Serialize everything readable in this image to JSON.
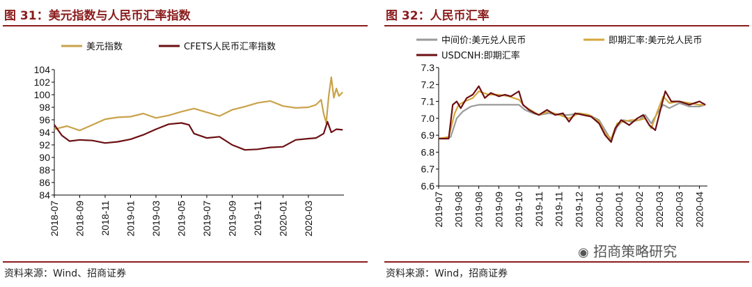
{
  "left": {
    "title": "图 31：美元指数与人民币汇率指数",
    "source": "资料来源：Wind、招商证券"
  },
  "right": {
    "title": "图 32：人民币汇率",
    "source": "资料来源：Wind，招商证券"
  },
  "watermark": "招商策略研究",
  "chart_data": [
    {
      "type": "line",
      "title": "图 31：美元指数与人民币汇率指数",
      "xlabel": "",
      "ylabel": "",
      "ylim": [
        84,
        104
      ],
      "yticks": [
        84,
        86,
        88,
        90,
        92,
        94,
        96,
        98,
        100,
        102,
        104
      ],
      "x_tick_labels": [
        "2018-07",
        "2018-09",
        "2018-11",
        "2019-01",
        "2019-03",
        "2019-05",
        "2019-07",
        "2019-09",
        "2019-11",
        "2020-01",
        "2020-03"
      ],
      "legend_position": "top",
      "grid": false,
      "series": [
        {
          "name": "美元指数",
          "color": "#c9a24a",
          "points": [
            [
              0,
              94.5
            ],
            [
              0.5,
              95.0
            ],
            [
              1,
              94.3
            ],
            [
              1.5,
              95.2
            ],
            [
              2,
              96.1
            ],
            [
              2.5,
              96.4
            ],
            [
              3,
              96.5
            ],
            [
              3.5,
              97.0
            ],
            [
              4,
              96.3
            ],
            [
              4.5,
              96.7
            ],
            [
              5,
              97.3
            ],
            [
              5.5,
              97.8
            ],
            [
              6,
              97.2
            ],
            [
              6.5,
              96.6
            ],
            [
              7,
              97.6
            ],
            [
              7.5,
              98.1
            ],
            [
              8,
              98.7
            ],
            [
              8.5,
              99.0
            ],
            [
              9,
              98.2
            ],
            [
              9.5,
              97.9
            ],
            [
              10,
              98.0
            ],
            [
              10.3,
              98.4
            ],
            [
              10.5,
              99.2
            ],
            [
              10.6,
              97.0
            ],
            [
              10.7,
              95.5
            ],
            [
              10.8,
              99.8
            ],
            [
              10.9,
              102.8
            ],
            [
              11.0,
              99.5
            ],
            [
              11.1,
              101.0
            ],
            [
              11.2,
              99.8
            ],
            [
              11.35,
              100.4
            ]
          ]
        },
        {
          "name": "CFETS人民币汇率指数",
          "color": "#6b0f12",
          "points": [
            [
              0,
              95.2
            ],
            [
              0.3,
              93.5
            ],
            [
              0.6,
              92.6
            ],
            [
              1,
              92.8
            ],
            [
              1.5,
              92.7
            ],
            [
              2,
              92.3
            ],
            [
              2.5,
              92.5
            ],
            [
              3,
              92.9
            ],
            [
              3.5,
              93.6
            ],
            [
              4,
              94.5
            ],
            [
              4.5,
              95.3
            ],
            [
              5,
              95.5
            ],
            [
              5.3,
              95.2
            ],
            [
              5.5,
              93.8
            ],
            [
              6,
              93.1
            ],
            [
              6.5,
              93.3
            ],
            [
              7,
              92.0
            ],
            [
              7.5,
              91.2
            ],
            [
              8,
              91.3
            ],
            [
              8.5,
              91.6
            ],
            [
              9,
              91.7
            ],
            [
              9.5,
              92.8
            ],
            [
              10,
              93.0
            ],
            [
              10.3,
              93.1
            ],
            [
              10.6,
              93.8
            ],
            [
              10.75,
              95.7
            ],
            [
              10.9,
              94.0
            ],
            [
              11.1,
              94.5
            ],
            [
              11.35,
              94.4
            ]
          ]
        }
      ]
    },
    {
      "type": "line",
      "title": "图 32：人民币汇率",
      "xlabel": "",
      "ylabel": "",
      "ylim": [
        6.6,
        7.3
      ],
      "yticks": [
        6.6,
        6.7,
        6.8,
        6.9,
        7.0,
        7.1,
        7.2,
        7.3
      ],
      "x_tick_labels": [
        "2019-07",
        "2019-08",
        "2019-08",
        "2019-09",
        "2019-10",
        "2019-11",
        "2019-11",
        "2019-12",
        "2020-01",
        "2020-01",
        "2020-02",
        "2020-03",
        "2020-03",
        "2020-04"
      ],
      "legend_position": "top",
      "grid": false,
      "series": [
        {
          "name": "中间价:美元兑人民币",
          "color": "#9a9a9a",
          "points": [
            [
              0,
              6.88
            ],
            [
              0.6,
              6.89
            ],
            [
              0.9,
              7.0
            ],
            [
              1.2,
              7.04
            ],
            [
              1.6,
              7.07
            ],
            [
              2,
              7.08
            ],
            [
              2.5,
              7.08
            ],
            [
              3,
              7.08
            ],
            [
              3.5,
              7.08
            ],
            [
              4,
              7.08
            ],
            [
              4.3,
              7.05
            ],
            [
              4.7,
              7.03
            ],
            [
              5,
              7.02
            ],
            [
              5.5,
              7.03
            ],
            [
              6,
              7.02
            ],
            [
              6.5,
              7.02
            ],
            [
              7,
              7.03
            ],
            [
              7.5,
              7.02
            ],
            [
              8,
              6.99
            ],
            [
              8.3,
              6.93
            ],
            [
              8.6,
              6.87
            ],
            [
              8.9,
              6.95
            ],
            [
              9.2,
              6.99
            ],
            [
              9.6,
              6.98
            ],
            [
              10,
              6.99
            ],
            [
              10.3,
              7.02
            ],
            [
              10.6,
              6.97
            ],
            [
              10.9,
              7.03
            ],
            [
              11.2,
              7.08
            ],
            [
              11.5,
              7.06
            ],
            [
              12,
              7.09
            ],
            [
              12.5,
              7.07
            ],
            [
              13,
              7.07
            ],
            [
              13.3,
              7.08
            ]
          ]
        },
        {
          "name": "即期汇率:美元兑人民币",
          "color": "#d4a63b",
          "points": [
            [
              0,
              6.88
            ],
            [
              0.5,
              6.89
            ],
            [
              0.8,
              7.03
            ],
            [
              1,
              7.08
            ],
            [
              1.3,
              7.1
            ],
            [
              1.7,
              7.12
            ],
            [
              2,
              7.16
            ],
            [
              2.5,
              7.14
            ],
            [
              3,
              7.14
            ],
            [
              3.5,
              7.13
            ],
            [
              4,
              7.11
            ],
            [
              4.3,
              7.07
            ],
            [
              4.7,
              7.04
            ],
            [
              5,
              7.02
            ],
            [
              5.5,
              7.04
            ],
            [
              6,
              7.02
            ],
            [
              6.5,
              7.0
            ],
            [
              7,
              7.03
            ],
            [
              7.5,
              7.02
            ],
            [
              8,
              6.98
            ],
            [
              8.3,
              6.91
            ],
            [
              8.6,
              6.88
            ],
            [
              8.9,
              6.97
            ],
            [
              9.2,
              6.98
            ],
            [
              9.6,
              6.99
            ],
            [
              10,
              6.99
            ],
            [
              10.3,
              7.0
            ],
            [
              10.6,
              6.94
            ],
            [
              10.9,
              7.04
            ],
            [
              11.2,
              7.13
            ],
            [
              11.5,
              7.09
            ],
            [
              12,
              7.1
            ],
            [
              12.5,
              7.09
            ],
            [
              13,
              7.08
            ],
            [
              13.3,
              7.08
            ]
          ]
        },
        {
          "name": "USDCNH:即期汇率",
          "color": "#6b0f12",
          "points": [
            [
              0,
              6.88
            ],
            [
              0.5,
              6.88
            ],
            [
              0.7,
              7.08
            ],
            [
              0.9,
              7.1
            ],
            [
              1.1,
              7.06
            ],
            [
              1.4,
              7.12
            ],
            [
              1.7,
              7.14
            ],
            [
              2,
              7.19
            ],
            [
              2.3,
              7.12
            ],
            [
              2.6,
              7.15
            ],
            [
              3,
              7.13
            ],
            [
              3.3,
              7.14
            ],
            [
              3.6,
              7.13
            ],
            [
              4,
              7.16
            ],
            [
              4.2,
              7.08
            ],
            [
              4.5,
              7.05
            ],
            [
              4.8,
              7.03
            ],
            [
              5,
              7.02
            ],
            [
              5.4,
              7.05
            ],
            [
              5.8,
              7.02
            ],
            [
              6.2,
              7.03
            ],
            [
              6.5,
              6.98
            ],
            [
              6.8,
              7.03
            ],
            [
              7.2,
              7.02
            ],
            [
              7.6,
              7.01
            ],
            [
              8,
              6.97
            ],
            [
              8.3,
              6.9
            ],
            [
              8.6,
              6.86
            ],
            [
              8.8,
              6.94
            ],
            [
              9.1,
              6.99
            ],
            [
              9.5,
              6.96
            ],
            [
              9.9,
              7.0
            ],
            [
              10.2,
              7.02
            ],
            [
              10.5,
              6.96
            ],
            [
              10.8,
              6.93
            ],
            [
              11.1,
              7.07
            ],
            [
              11.3,
              7.16
            ],
            [
              11.6,
              7.1
            ],
            [
              12,
              7.1
            ],
            [
              12.5,
              7.08
            ],
            [
              13,
              7.1
            ],
            [
              13.3,
              7.08
            ]
          ]
        }
      ]
    }
  ]
}
